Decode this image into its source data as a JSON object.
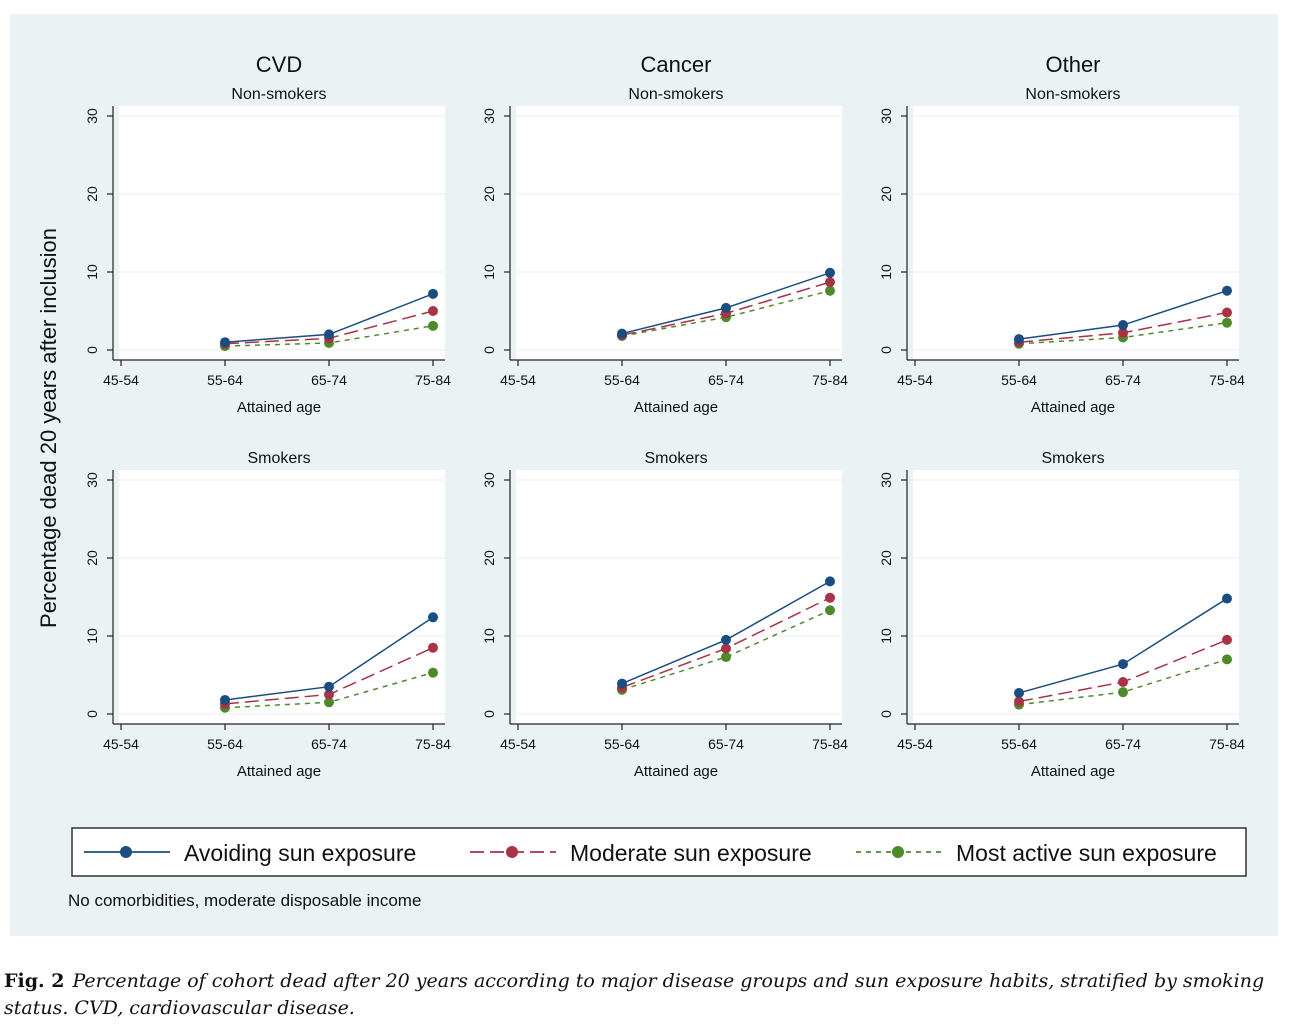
{
  "ylabel": "Percentage dead 20 years after inclusion",
  "note": "No comorbidities, moderate disposable income",
  "legend": [
    {
      "label": "Avoiding sun exposure",
      "color": "#1a4d80",
      "dash": "solid"
    },
    {
      "label": "Moderate sun exposure",
      "color": "#a93247",
      "dash": "long-dash"
    },
    {
      "label": "Most active sun exposure",
      "color": "#4f8a2a",
      "dash": "short-dash"
    }
  ],
  "caption": {
    "label": "Fig. 2",
    "text": "Percentage of cohort dead after 20 years according to major disease groups and sun exposure habits, stratified by smoking status. CVD, cardiovascular disease."
  },
  "chart_data": [
    {
      "type": "line",
      "title": "CVD",
      "subtitle": "Non-smokers",
      "xlabel": "Attained age",
      "categories": [
        "45-54",
        "55-64",
        "65-74",
        "75-84"
      ],
      "yticks": [
        "0",
        "10",
        "20",
        "30"
      ],
      "ylim": [
        0,
        30
      ],
      "series": [
        {
          "name": "Avoiding sun exposure",
          "values": [
            null,
            1.0,
            2.0,
            7.2
          ]
        },
        {
          "name": "Moderate sun exposure",
          "values": [
            null,
            0.8,
            1.5,
            5.0
          ]
        },
        {
          "name": "Most active sun exposure",
          "values": [
            null,
            0.5,
            0.9,
            3.1
          ]
        }
      ]
    },
    {
      "type": "line",
      "title": "Cancer",
      "subtitle": "Non-smokers",
      "xlabel": "Attained age",
      "categories": [
        "45-54",
        "55-64",
        "65-74",
        "75-84"
      ],
      "yticks": [
        "0",
        "10",
        "20",
        "30"
      ],
      "ylim": [
        0,
        30
      ],
      "series": [
        {
          "name": "Avoiding sun exposure",
          "values": [
            null,
            2.1,
            5.4,
            9.9
          ]
        },
        {
          "name": "Moderate sun exposure",
          "values": [
            null,
            1.9,
            4.7,
            8.7
          ]
        },
        {
          "name": "Most active sun exposure",
          "values": [
            null,
            1.8,
            4.2,
            7.6
          ]
        }
      ]
    },
    {
      "type": "line",
      "title": "Other",
      "subtitle": "Non-smokers",
      "xlabel": "Attained age",
      "categories": [
        "45-54",
        "55-64",
        "65-74",
        "75-84"
      ],
      "yticks": [
        "0",
        "10",
        "20",
        "30"
      ],
      "ylim": [
        0,
        30
      ],
      "series": [
        {
          "name": "Avoiding sun exposure",
          "values": [
            null,
            1.4,
            3.2,
            7.6
          ]
        },
        {
          "name": "Moderate sun exposure",
          "values": [
            null,
            1.0,
            2.2,
            4.8
          ]
        },
        {
          "name": "Most active sun exposure",
          "values": [
            null,
            0.8,
            1.6,
            3.5
          ]
        }
      ]
    },
    {
      "type": "line",
      "title": "",
      "subtitle": "Smokers",
      "xlabel": "Attained age",
      "categories": [
        "45-54",
        "55-64",
        "65-74",
        "75-84"
      ],
      "yticks": [
        "0",
        "10",
        "20",
        "30"
      ],
      "ylim": [
        0,
        30
      ],
      "series": [
        {
          "name": "Avoiding sun exposure",
          "values": [
            null,
            1.8,
            3.5,
            12.4
          ]
        },
        {
          "name": "Moderate sun exposure",
          "values": [
            null,
            1.3,
            2.5,
            8.5
          ]
        },
        {
          "name": "Most active sun exposure",
          "values": [
            null,
            0.8,
            1.5,
            5.3
          ]
        }
      ]
    },
    {
      "type": "line",
      "title": "",
      "subtitle": "Smokers",
      "xlabel": "Attained age",
      "categories": [
        "45-54",
        "55-64",
        "65-74",
        "75-84"
      ],
      "yticks": [
        "0",
        "10",
        "20",
        "30"
      ],
      "ylim": [
        0,
        30
      ],
      "series": [
        {
          "name": "Avoiding sun exposure",
          "values": [
            null,
            3.9,
            9.5,
            17.0
          ]
        },
        {
          "name": "Moderate sun exposure",
          "values": [
            null,
            3.4,
            8.4,
            14.9
          ]
        },
        {
          "name": "Most active sun exposure",
          "values": [
            null,
            3.1,
            7.3,
            13.3
          ]
        }
      ]
    },
    {
      "type": "line",
      "title": "",
      "subtitle": "Smokers",
      "xlabel": "Attained age",
      "categories": [
        "45-54",
        "55-64",
        "65-74",
        "75-84"
      ],
      "yticks": [
        "0",
        "10",
        "20",
        "30"
      ],
      "ylim": [
        0,
        30
      ],
      "series": [
        {
          "name": "Avoiding sun exposure",
          "values": [
            null,
            2.7,
            6.4,
            14.8
          ]
        },
        {
          "name": "Moderate sun exposure",
          "values": [
            null,
            1.6,
            4.1,
            9.5
          ]
        },
        {
          "name": "Most active sun exposure",
          "values": [
            null,
            1.2,
            2.8,
            7.0
          ]
        }
      ]
    }
  ]
}
